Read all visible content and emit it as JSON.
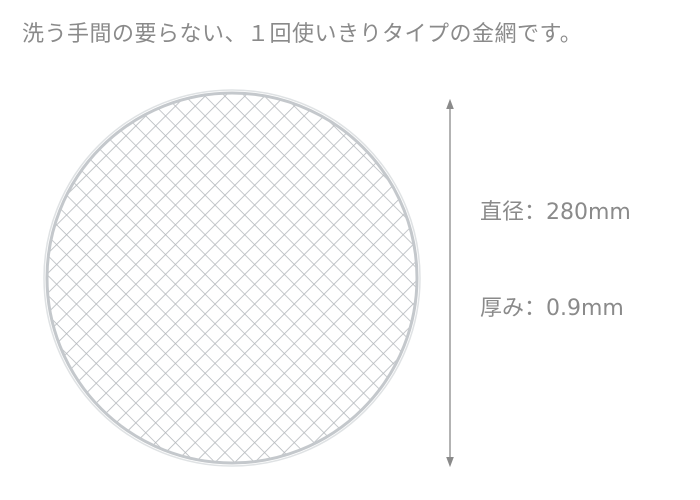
{
  "headline": "洗う手間の要らない、１回使いきりタイプの金網です。",
  "specs": {
    "diameter": "直径：280mm",
    "thickness": "厚み：0.9mm"
  },
  "colors": {
    "text": "#8a8a8a",
    "wire": "#b8bcc0",
    "arrow": "#8a8a8a"
  }
}
